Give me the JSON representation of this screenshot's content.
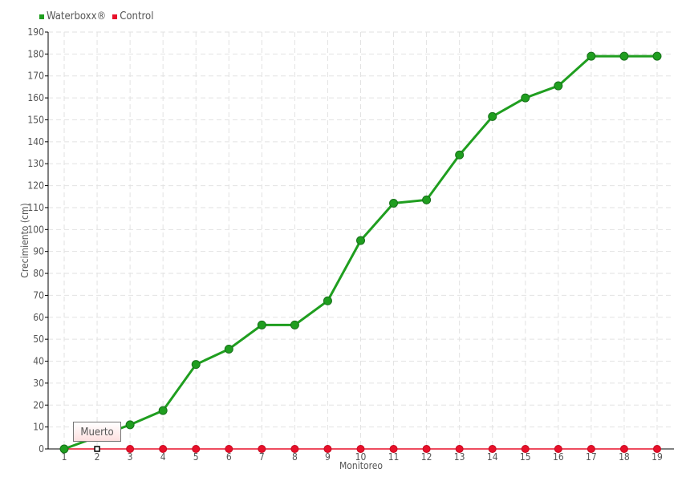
{
  "chart_data": {
    "type": "line",
    "title": "",
    "xlabel": "Monitoreo",
    "ylabel": "Crecimiento (cm)",
    "categories": [
      "1",
      "2",
      "3",
      "4",
      "5",
      "6",
      "7",
      "8",
      "9",
      "10",
      "11",
      "12",
      "13",
      "14",
      "15",
      "16",
      "17",
      "18",
      "19"
    ],
    "ylim": [
      0,
      190
    ],
    "yticks": [
      0,
      10,
      20,
      30,
      40,
      50,
      60,
      70,
      80,
      90,
      100,
      110,
      120,
      130,
      140,
      150,
      160,
      170,
      180,
      190
    ],
    "grid": true,
    "legend_position": "top-left",
    "series": [
      {
        "name": "Waterboxx®",
        "color": "#1f9e1f",
        "values": [
          0,
          5.5,
          11,
          17.5,
          38.5,
          45.5,
          56.5,
          56.5,
          67.5,
          95,
          112,
          113.5,
          134,
          151.5,
          160,
          165.5,
          179,
          179,
          179
        ]
      },
      {
        "name": "Control",
        "color": "#e8102a",
        "values": [
          0,
          0,
          0,
          0,
          0,
          0,
          0,
          0,
          0,
          0,
          0,
          0,
          0,
          0,
          0,
          0,
          0,
          0,
          0
        ]
      }
    ],
    "annotations": [
      {
        "text": "Muerto",
        "category": "2",
        "series": "Control"
      }
    ]
  }
}
